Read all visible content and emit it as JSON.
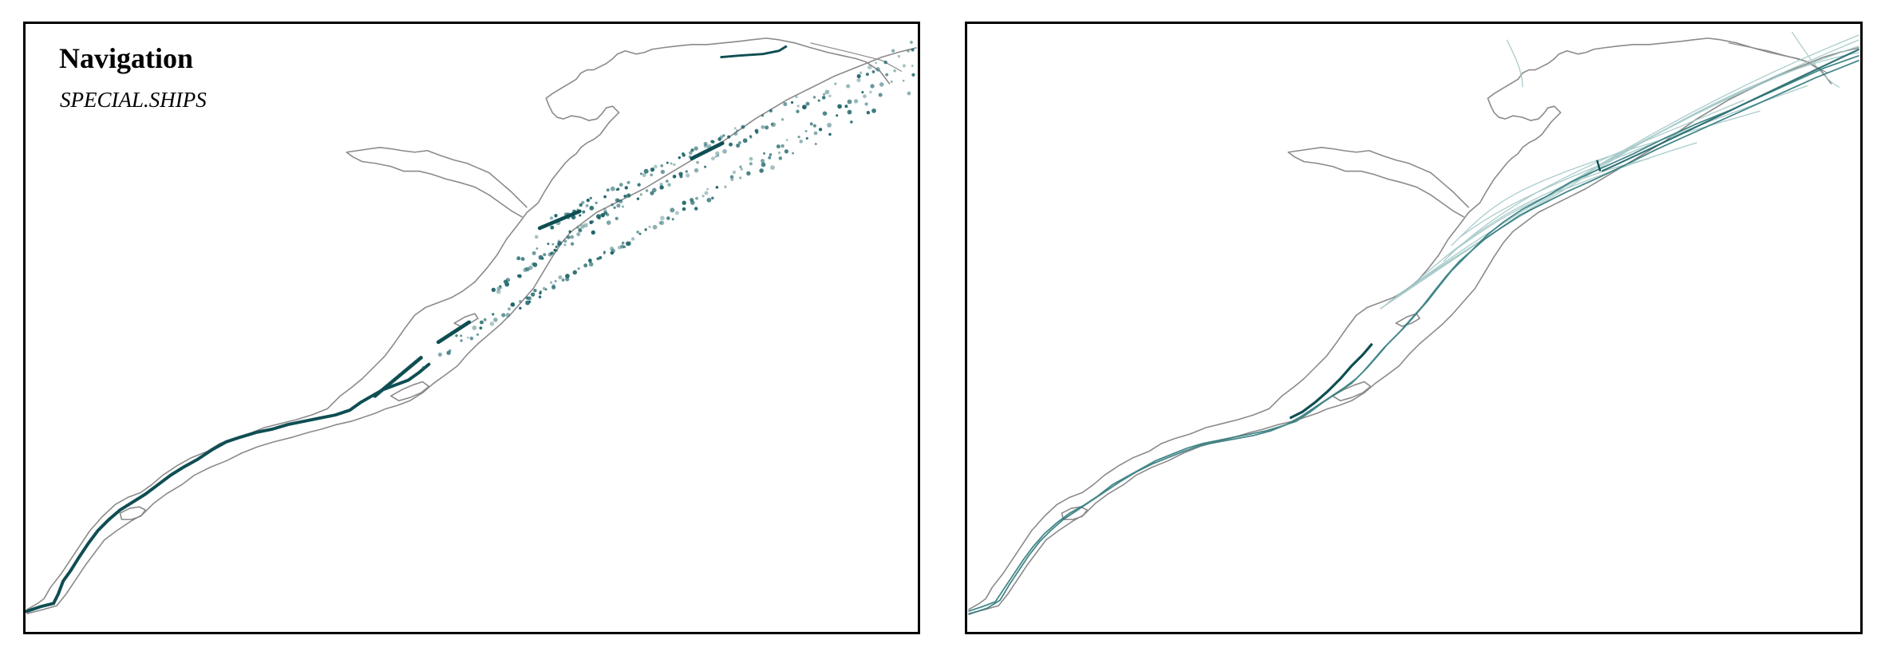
{
  "left_map": {
    "title": "Navigation",
    "subtitle": "SPECIAL.SHIPS",
    "layer": "ship-position-points"
  },
  "right_map": {
    "layer": "ship-track-lines"
  },
  "colors": {
    "shoreline": "#7f7f7f",
    "track_dark": "#0f4e53",
    "track_mid": "#2f7a7c",
    "track_light": "#9cc3c3",
    "frame": "#000000"
  }
}
